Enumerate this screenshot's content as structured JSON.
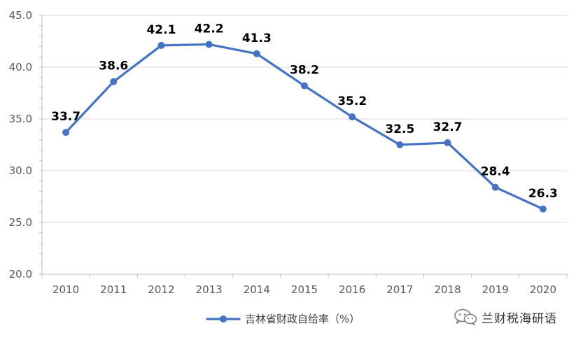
{
  "chart_data": {
    "type": "line",
    "title": "",
    "xlabel": "",
    "ylabel": "",
    "x": [
      "2010",
      "2011",
      "2012",
      "2013",
      "2014",
      "2015",
      "2016",
      "2017",
      "2018",
      "2019",
      "2020"
    ],
    "series": [
      {
        "name": "吉林省财政自给率（%）",
        "values": [
          33.7,
          38.6,
          42.1,
          42.2,
          41.3,
          38.2,
          35.2,
          32.5,
          32.7,
          28.4,
          26.3
        ],
        "color": "#4472C4"
      }
    ],
    "ylim": [
      20.0,
      45.0
    ],
    "yticks": [
      "20.0",
      "25.0",
      "30.0",
      "35.0",
      "40.0",
      "45.0"
    ],
    "data_labels": [
      "33.7",
      "38.6",
      "42.1",
      "42.2",
      "41.3",
      "38.2",
      "35.2",
      "32.5",
      "32.7",
      "28.4",
      "26.3"
    ],
    "grid": "horizontal",
    "legend": {
      "position": "bottom",
      "label": "吉林省财政自给率（%）"
    }
  },
  "watermark": {
    "text": "兰财税海研语",
    "icon": "wechat-icon"
  },
  "colors": {
    "series": "#4472C4",
    "grid": "#D9D9D9",
    "axis": "#BFBFBF",
    "tick_text": "#595959"
  }
}
